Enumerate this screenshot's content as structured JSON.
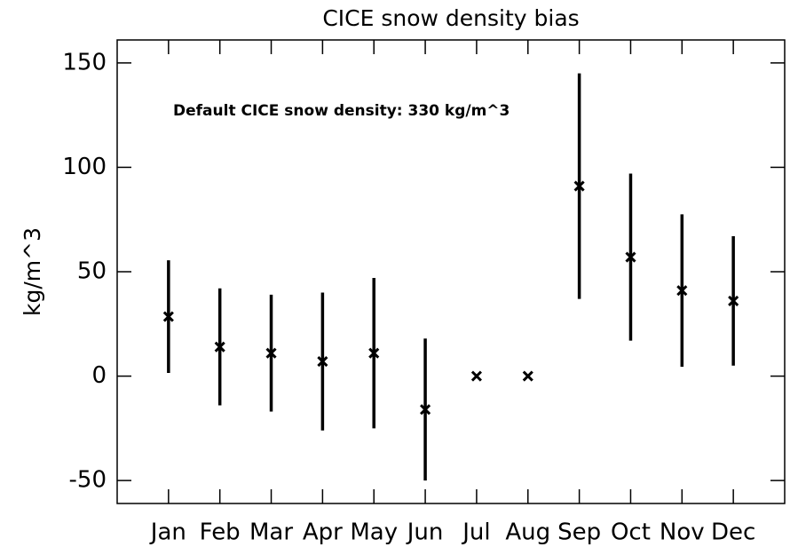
{
  "chart_data": {
    "type": "errorbar",
    "title": "CICE snow density bias",
    "ylabel": "kg/m^3",
    "annotation": "Default CICE snow density: 330 kg/m^3",
    "categories": [
      "Jan",
      "Feb",
      "Mar",
      "Apr",
      "May",
      "Jun",
      "Jul",
      "Aug",
      "Sep",
      "Oct",
      "Nov",
      "Dec"
    ],
    "values": [
      28.5,
      14,
      11,
      7,
      11,
      -16,
      0,
      0,
      91,
      57,
      41,
      36
    ],
    "errors": [
      27,
      28,
      28,
      33,
      36,
      34,
      null,
      null,
      54,
      40,
      36.5,
      31
    ],
    "color": "#000000",
    "ylim": [
      -61,
      161
    ],
    "yticks": [
      -50,
      0,
      50,
      100,
      150
    ]
  }
}
